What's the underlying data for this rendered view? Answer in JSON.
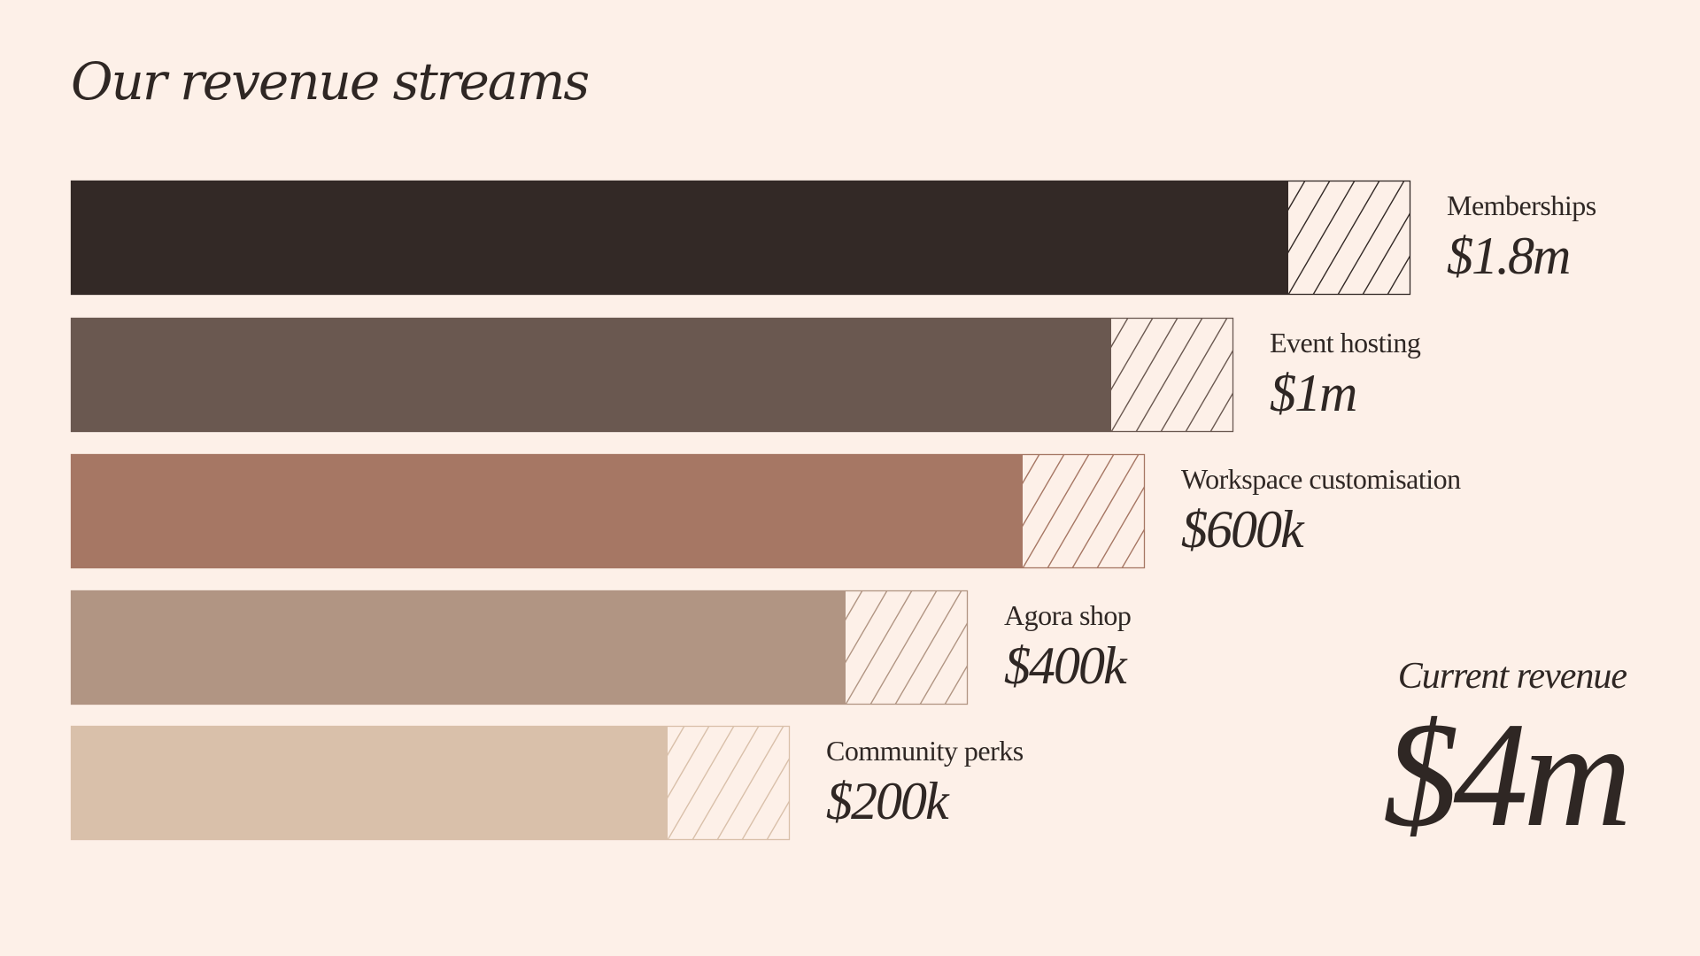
{
  "chart_data": {
    "type": "bar",
    "orientation": "horizontal",
    "title": "Our revenue streams",
    "categories": [
      "Memberships",
      "Event hosting",
      "Workspace customisation",
      "Agora shop",
      "Community perks"
    ],
    "values": [
      1800000,
      1000000,
      600000,
      400000,
      200000
    ],
    "value_labels": [
      "$1.8m",
      "$1m",
      "$600k",
      "$400k",
      "$200k"
    ],
    "colors": [
      "#332926",
      "#6a5850",
      "#a67764",
      "#b19583",
      "#d9c0aa"
    ],
    "xlabel": "",
    "ylabel": "",
    "grid": false,
    "total": {
      "label": "Current revenue",
      "value": "$4m"
    }
  }
}
